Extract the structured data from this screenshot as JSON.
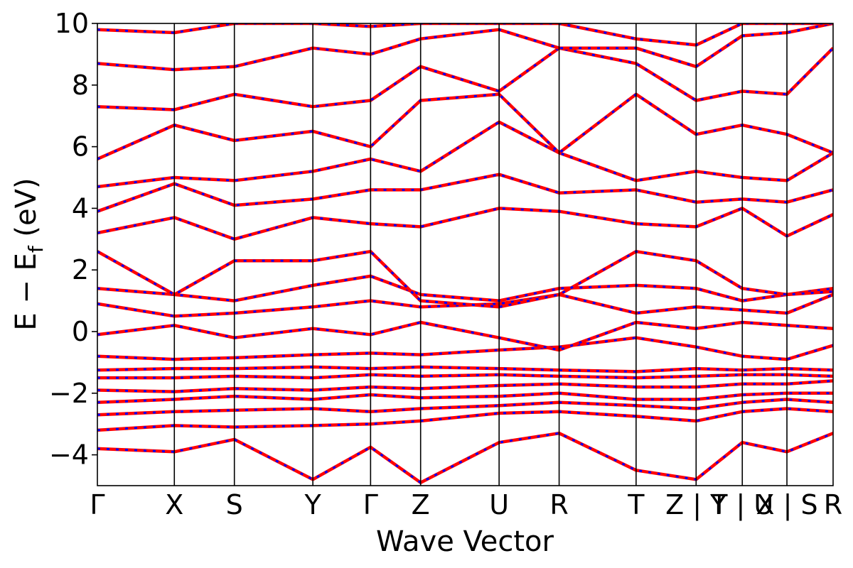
{
  "chart_data": {
    "type": "line",
    "title": "",
    "xlabel": "Wave Vector",
    "ylabel": "E − E_f (eV)",
    "ylabel_parts": {
      "prefix": "E  −  E",
      "subscript": "f",
      "suffix": " (eV)"
    },
    "ylim": [
      -5,
      10
    ],
    "yticks": [
      -4,
      -2,
      0,
      2,
      4,
      6,
      8,
      10
    ],
    "ytick_labels": [
      "−4",
      "−2",
      "0",
      "2",
      "4",
      "6",
      "8",
      "10"
    ],
    "grid": false,
    "legend": "none",
    "colors": {
      "band_up": "#0000ff",
      "band_down": "#ff0000",
      "axis": "#000000"
    },
    "kpoints": [
      {
        "label": "Γ",
        "x": 0.0
      },
      {
        "label": "X",
        "x": 1.0
      },
      {
        "label": "S",
        "x": 1.78
      },
      {
        "label": "Y",
        "x": 2.8
      },
      {
        "label": "Γ",
        "x": 3.55
      },
      {
        "label": "Z",
        "x": 4.2
      },
      {
        "label": "U",
        "x": 5.22
      },
      {
        "label": "R",
        "x": 6.0
      },
      {
        "label": "T",
        "x": 7.0
      },
      {
        "label": "Z | Y",
        "x": 7.78
      },
      {
        "label": "T | U",
        "x": 8.38
      },
      {
        "label": "X | S",
        "x": 8.96
      },
      {
        "label": "R",
        "x": 9.56
      }
    ],
    "bands": [
      [
        [
          0,
          -3.8
        ],
        [
          1,
          -3.9
        ],
        [
          1.78,
          -3.5
        ],
        [
          2.8,
          -4.8
        ],
        [
          3.55,
          -3.75
        ],
        [
          4.2,
          -4.9
        ],
        [
          5.22,
          -3.6
        ],
        [
          6,
          -3.3
        ],
        [
          7,
          -4.5
        ],
        [
          7.78,
          -4.8
        ],
        [
          8.38,
          -3.6
        ],
        [
          8.96,
          -3.9
        ],
        [
          9.56,
          -3.3
        ]
      ],
      [
        [
          0,
          -3.2
        ],
        [
          1,
          -3.05
        ],
        [
          1.78,
          -3.1
        ],
        [
          2.8,
          -3.05
        ],
        [
          3.55,
          -3.0
        ],
        [
          4.2,
          -2.9
        ],
        [
          5.22,
          -2.65
        ],
        [
          6,
          -2.6
        ],
        [
          7,
          -2.75
        ],
        [
          7.78,
          -2.9
        ],
        [
          8.38,
          -2.6
        ],
        [
          8.96,
          -2.5
        ],
        [
          9.56,
          -2.6
        ]
      ],
      [
        [
          0,
          -2.7
        ],
        [
          1,
          -2.6
        ],
        [
          1.78,
          -2.55
        ],
        [
          2.8,
          -2.5
        ],
        [
          3.55,
          -2.6
        ],
        [
          4.2,
          -2.5
        ],
        [
          5.22,
          -2.4
        ],
        [
          6,
          -2.3
        ],
        [
          7,
          -2.4
        ],
        [
          7.78,
          -2.5
        ],
        [
          8.38,
          -2.3
        ],
        [
          8.96,
          -2.2
        ],
        [
          9.56,
          -2.3
        ]
      ],
      [
        [
          0,
          -2.3
        ],
        [
          1,
          -2.2
        ],
        [
          1.78,
          -2.1
        ],
        [
          2.8,
          -2.2
        ],
        [
          3.55,
          -2.05
        ],
        [
          4.2,
          -2.15
        ],
        [
          5.22,
          -2.1
        ],
        [
          6,
          -2.0
        ],
        [
          7,
          -2.2
        ],
        [
          7.78,
          -2.2
        ],
        [
          8.38,
          -2.05
        ],
        [
          8.96,
          -2.0
        ],
        [
          9.56,
          -2.0
        ]
      ],
      [
        [
          0,
          -1.9
        ],
        [
          1,
          -1.95
        ],
        [
          1.78,
          -1.85
        ],
        [
          2.8,
          -1.9
        ],
        [
          3.55,
          -1.8
        ],
        [
          4.2,
          -1.85
        ],
        [
          5.22,
          -1.75
        ],
        [
          6,
          -1.7
        ],
        [
          7,
          -1.8
        ],
        [
          7.78,
          -1.8
        ],
        [
          8.38,
          -1.7
        ],
        [
          8.96,
          -1.7
        ],
        [
          9.56,
          -1.6
        ]
      ],
      [
        [
          0,
          -1.5
        ],
        [
          1,
          -1.5
        ],
        [
          1.78,
          -1.45
        ],
        [
          2.8,
          -1.5
        ],
        [
          3.55,
          -1.4
        ],
        [
          4.2,
          -1.45
        ],
        [
          5.22,
          -1.4
        ],
        [
          6,
          -1.45
        ],
        [
          7,
          -1.5
        ],
        [
          7.78,
          -1.45
        ],
        [
          8.38,
          -1.4
        ],
        [
          8.96,
          -1.4
        ],
        [
          9.56,
          -1.45
        ]
      ],
      [
        [
          0,
          -1.25
        ],
        [
          1,
          -1.2
        ],
        [
          1.78,
          -1.2
        ],
        [
          2.8,
          -1.15
        ],
        [
          3.55,
          -1.2
        ],
        [
          4.2,
          -1.15
        ],
        [
          5.22,
          -1.2
        ],
        [
          6,
          -1.25
        ],
        [
          7,
          -1.3
        ],
        [
          7.78,
          -1.2
        ],
        [
          8.38,
          -1.25
        ],
        [
          8.96,
          -1.2
        ],
        [
          9.56,
          -1.25
        ]
      ],
      [
        [
          0,
          -0.8
        ],
        [
          1,
          -0.9
        ],
        [
          1.78,
          -0.85
        ],
        [
          2.8,
          -0.75
        ],
        [
          3.55,
          -0.7
        ],
        [
          4.2,
          -0.75
        ],
        [
          5.22,
          -0.6
        ],
        [
          6,
          -0.5
        ],
        [
          7,
          -0.2
        ],
        [
          7.78,
          -0.5
        ],
        [
          8.38,
          -0.8
        ],
        [
          8.96,
          -0.9
        ],
        [
          9.56,
          -0.45
        ]
      ],
      [
        [
          0,
          -0.1
        ],
        [
          1,
          0.2
        ],
        [
          1.78,
          -0.2
        ],
        [
          2.8,
          0.1
        ],
        [
          3.55,
          -0.1
        ],
        [
          4.2,
          0.3
        ],
        [
          5.22,
          -0.2
        ],
        [
          6,
          -0.6
        ],
        [
          7,
          0.3
        ],
        [
          7.78,
          0.1
        ],
        [
          8.38,
          0.3
        ],
        [
          8.96,
          0.2
        ],
        [
          9.56,
          0.1
        ]
      ],
      [
        [
          0,
          0.9
        ],
        [
          1,
          0.5
        ],
        [
          1.78,
          0.6
        ],
        [
          2.8,
          0.8
        ],
        [
          3.55,
          1.0
        ],
        [
          4.2,
          0.8
        ],
        [
          5.22,
          0.9
        ],
        [
          6,
          1.2
        ],
        [
          7,
          0.6
        ],
        [
          7.78,
          0.8
        ],
        [
          8.38,
          0.7
        ],
        [
          8.96,
          0.6
        ],
        [
          9.56,
          1.2
        ]
      ],
      [
        [
          0,
          1.4
        ],
        [
          1,
          1.2
        ],
        [
          1.78,
          1.0
        ],
        [
          2.8,
          1.5
        ],
        [
          3.55,
          1.8
        ],
        [
          4.2,
          1.2
        ],
        [
          5.22,
          1.0
        ],
        [
          6,
          1.4
        ],
        [
          7,
          1.5
        ],
        [
          7.78,
          1.4
        ],
        [
          8.38,
          1.0
        ],
        [
          8.96,
          1.2
        ],
        [
          9.56,
          1.4
        ]
      ],
      [
        [
          0,
          2.6
        ],
        [
          1,
          1.2
        ],
        [
          1.78,
          2.3
        ],
        [
          2.8,
          2.3
        ],
        [
          3.55,
          2.6
        ],
        [
          4.2,
          1.0
        ],
        [
          5.22,
          0.8
        ],
        [
          6,
          1.2
        ],
        [
          7,
          2.6
        ],
        [
          7.78,
          2.3
        ],
        [
          8.38,
          1.4
        ],
        [
          8.96,
          1.2
        ],
        [
          9.56,
          1.3
        ]
      ],
      [
        [
          0,
          3.2
        ],
        [
          1,
          3.7
        ],
        [
          1.78,
          3.0
        ],
        [
          2.8,
          3.7
        ],
        [
          3.55,
          3.5
        ],
        [
          4.2,
          3.4
        ],
        [
          5.22,
          4.0
        ],
        [
          6,
          3.9
        ],
        [
          7,
          3.5
        ],
        [
          7.78,
          3.4
        ],
        [
          8.38,
          4.0
        ],
        [
          8.96,
          3.1
        ],
        [
          9.56,
          3.8
        ]
      ],
      [
        [
          0,
          3.9
        ],
        [
          1,
          4.8
        ],
        [
          1.78,
          4.1
        ],
        [
          2.8,
          4.3
        ],
        [
          3.55,
          4.6
        ],
        [
          4.2,
          4.6
        ],
        [
          5.22,
          5.1
        ],
        [
          6,
          4.5
        ],
        [
          7,
          4.6
        ],
        [
          7.78,
          4.2
        ],
        [
          8.38,
          4.3
        ],
        [
          8.96,
          4.2
        ],
        [
          9.56,
          4.6
        ]
      ],
      [
        [
          0,
          4.7
        ],
        [
          1,
          5.0
        ],
        [
          1.78,
          4.9
        ],
        [
          2.8,
          5.2
        ],
        [
          3.55,
          5.6
        ],
        [
          4.2,
          5.2
        ],
        [
          5.22,
          6.8
        ],
        [
          6,
          5.8
        ],
        [
          7,
          4.9
        ],
        [
          7.78,
          5.2
        ],
        [
          8.38,
          5.0
        ],
        [
          8.96,
          4.9
        ],
        [
          9.56,
          5.8
        ]
      ],
      [
        [
          0,
          5.6
        ],
        [
          1,
          6.7
        ],
        [
          1.78,
          6.2
        ],
        [
          2.8,
          6.5
        ],
        [
          3.55,
          6.0
        ],
        [
          4.2,
          7.5
        ],
        [
          5.22,
          7.7
        ],
        [
          6,
          5.8
        ],
        [
          7,
          7.7
        ],
        [
          7.78,
          6.4
        ],
        [
          8.38,
          6.7
        ],
        [
          8.96,
          6.4
        ],
        [
          9.56,
          5.8
        ]
      ],
      [
        [
          0,
          7.3
        ],
        [
          1,
          7.2
        ],
        [
          1.78,
          7.7
        ],
        [
          2.8,
          7.3
        ],
        [
          3.55,
          7.5
        ],
        [
          4.2,
          8.6
        ],
        [
          5.22,
          7.8
        ],
        [
          6,
          9.2
        ],
        [
          7,
          8.7
        ],
        [
          7.78,
          7.5
        ],
        [
          8.38,
          7.8
        ],
        [
          8.96,
          7.7
        ],
        [
          9.56,
          9.2
        ]
      ],
      [
        [
          0,
          8.7
        ],
        [
          1,
          8.5
        ],
        [
          1.78,
          8.6
        ],
        [
          2.8,
          9.2
        ],
        [
          3.55,
          9.0
        ],
        [
          4.2,
          9.5
        ],
        [
          5.22,
          9.8
        ],
        [
          6,
          9.2
        ],
        [
          7,
          9.2
        ],
        [
          7.78,
          8.6
        ],
        [
          8.38,
          9.6
        ],
        [
          8.96,
          9.7
        ],
        [
          9.56,
          10.0
        ]
      ],
      [
        [
          0,
          9.8
        ],
        [
          1,
          9.7
        ],
        [
          1.78,
          10.0
        ],
        [
          2.8,
          10.0
        ],
        [
          3.55,
          9.9
        ],
        [
          4.2,
          10.0
        ],
        [
          5.22,
          10.0
        ],
        [
          6,
          10.0
        ],
        [
          7,
          9.5
        ],
        [
          7.78,
          9.3
        ],
        [
          8.38,
          10.0
        ],
        [
          8.96,
          10.0
        ],
        [
          9.56,
          10.0
        ]
      ]
    ]
  }
}
